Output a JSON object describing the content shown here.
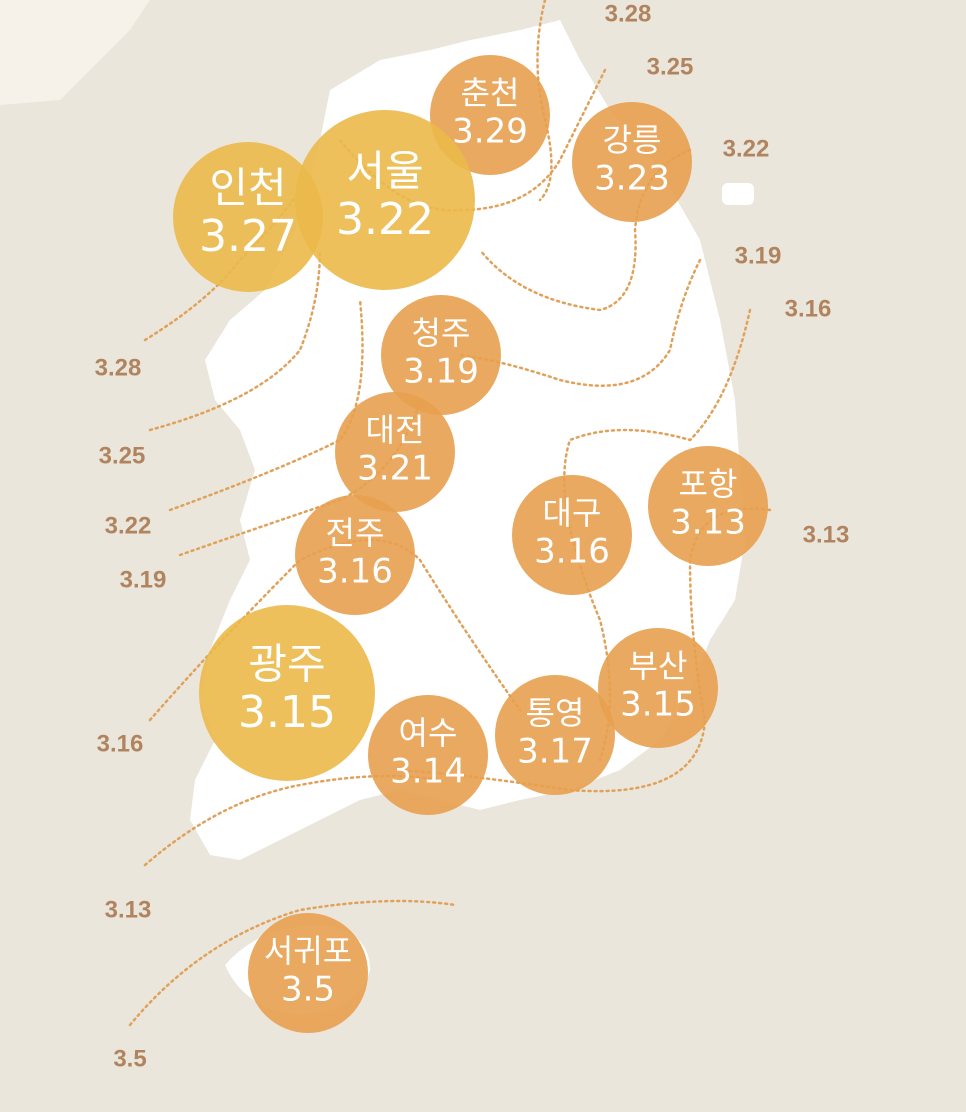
{
  "cities": [
    {
      "name": "춘천",
      "value": 3.29,
      "color": "#e8a04f"
    },
    {
      "name": "강릉",
      "value": 3.23,
      "color": "#e8a04f"
    },
    {
      "name": "인천",
      "value": 3.27,
      "color": "#ebb94a"
    },
    {
      "name": "서울",
      "value": 3.22,
      "color": "#ebb94a"
    },
    {
      "name": "청주",
      "value": 3.19,
      "color": "#e8a04f"
    },
    {
      "name": "대전",
      "value": 3.21,
      "color": "#e8a04f"
    },
    {
      "name": "전주",
      "value": 3.16,
      "color": "#e8a04f"
    },
    {
      "name": "대구",
      "value": 3.16,
      "color": "#e8a04f"
    },
    {
      "name": "포항",
      "value": 3.13,
      "color": "#e8a04f"
    },
    {
      "name": "광주",
      "value": 3.15,
      "color": "#ebb94a"
    },
    {
      "name": "여수",
      "value": 3.14,
      "color": "#e8a04f"
    },
    {
      "name": "통영",
      "value": 3.17,
      "color": "#e8a04f"
    },
    {
      "name": "부산",
      "value": 3.15,
      "color": "#e8a04f"
    },
    {
      "name": "서귀포",
      "value": 3.5,
      "color": "#e8a04f"
    }
  ],
  "contour_labels": [
    3.28,
    3.25,
    3.22,
    3.19,
    3.16,
    3.13,
    3.28,
    3.25,
    3.22,
    3.19,
    3.16,
    3.13,
    3.5
  ]
}
